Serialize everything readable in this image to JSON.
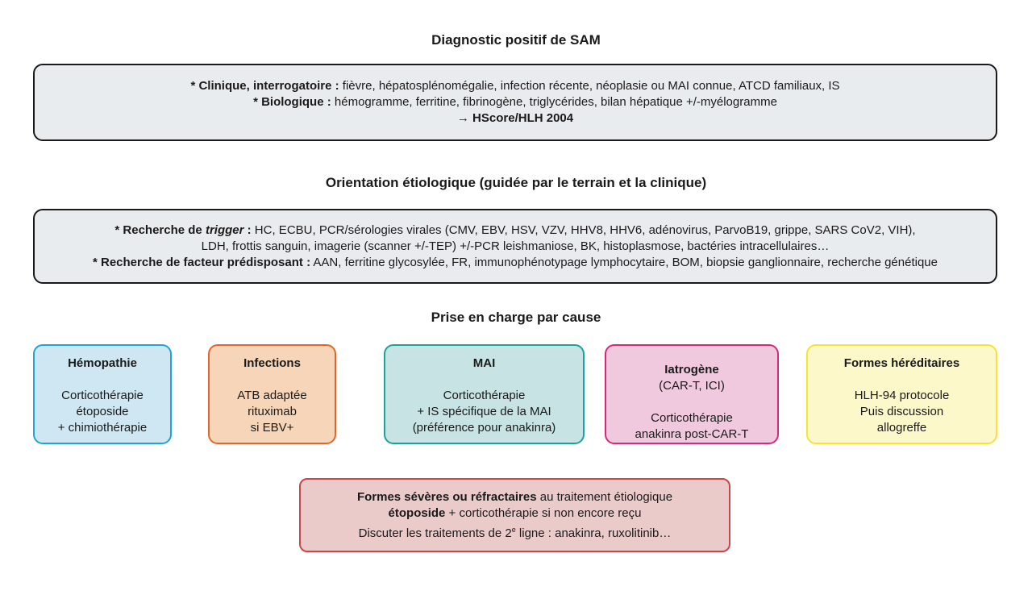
{
  "section1": {
    "title": "Diagnostic positif de SAM",
    "line1_bold": "* Clinique, interrogatoire :",
    "line1_text": " fièvre, hépatosplénomégalie, infection récente, néoplasie ou MAI connue, ATCD familiaux, IS",
    "line2_bold": "* Biologique :",
    "line2_text": " hémogramme, ferritine, fibrinogène, triglycérides, bilan hépatique +/-myélogramme",
    "line3_arrow": "→ ",
    "line3_bold": "HScore/HLH 2004"
  },
  "section2": {
    "title": "Orientation étiologique (guidée par le terrain et la clinique)",
    "line1_bold": "* Recherche de ",
    "line1_italic": "trigger",
    "line1_colon": " :",
    "line1_text": " HC, ECBU, PCR/sérologies virales (CMV, EBV, HSV, VZV, HHV8, HHV6, adénovirus, ParvoB19, grippe, SARS CoV2, VIH),",
    "line2_text": "LDH, frottis sanguin, imagerie (scanner +/-TEP) +/-PCR leishmaniose, BK, histoplasmose, bactéries intracellulaires…",
    "line3_bold": "* Recherche de facteur prédisposant :",
    "line3_text": " AAN, ferritine glycosylée, FR, immunophénotypage lymphocytaire, BOM, biopsie ganglionnaire, recherche génétique"
  },
  "section3": {
    "title": "Prise en charge par cause",
    "causes": [
      {
        "title": "Hémopathie",
        "subtitle": "",
        "lines": [
          "Corticothérapie",
          "étoposide",
          "+ chimiothérapie"
        ],
        "border": "#1ea4d8",
        "fill": "#cfe6f3"
      },
      {
        "title": "Infections",
        "subtitle": "",
        "lines": [
          "ATB adaptée",
          "rituximab",
          "si EBV+"
        ],
        "border": "#e0672b",
        "fill": "#f6d5b9"
      },
      {
        "title": "MAI",
        "subtitle": "",
        "lines": [
          "Corticothérapie",
          "+ IS spécifique de la MAI",
          "(préférence pour anakinra)"
        ],
        "border": "#1ba39b",
        "fill": "#c8e3e3"
      },
      {
        "title": "Iatrogène",
        "subtitle": "(CAR-T, ICI)",
        "lines": [
          "Corticothérapie",
          "anakinra post-CAR-T",
          ""
        ],
        "border": "#d5297c",
        "fill": "#f1c9df"
      },
      {
        "title": "Formes héréditaires",
        "subtitle": "",
        "lines": [
          "HLH-94 protocole",
          "Puis discussion",
          "allogreffe"
        ],
        "border": "#f4e534",
        "fill": "#fcf8c9"
      }
    ]
  },
  "severe": {
    "line1_bold": "Formes sévères ou réfractaires",
    "line1_text": " au traitement étiologique",
    "line2_bold": "étoposide",
    "line2_text": " + corticothérapie si non encore reçu",
    "line3_text": "Discuter les traitements de 2",
    "line3_sup": "e",
    "line3_text2": " ligne : anakinra, ruxolitinib…",
    "border": "#c8474b",
    "fill": "#ebcaca"
  }
}
